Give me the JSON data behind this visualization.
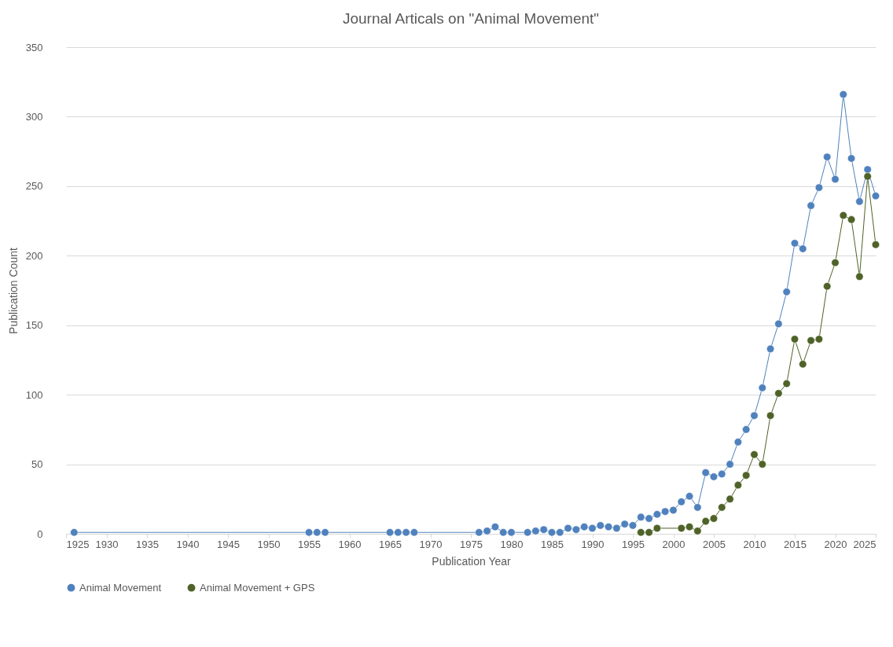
{
  "chart_data": {
    "type": "line",
    "title": "Journal Articals on \"Animal Movement\"",
    "xlabel": "Publication Year",
    "ylabel": "Publication Count",
    "xlim": [
      1925,
      2025
    ],
    "xticks": [
      1925,
      1930,
      1935,
      1940,
      1945,
      1950,
      1955,
      1960,
      1965,
      1970,
      1975,
      1980,
      1985,
      1990,
      1995,
      2000,
      2005,
      2010,
      2015,
      2020,
      2025
    ],
    "ylim": [
      0,
      350
    ],
    "yticks": [
      0,
      50,
      100,
      150,
      200,
      250,
      300,
      350
    ],
    "grid": "y",
    "legend": "bottom",
    "marker": "circle",
    "line_style": "solid",
    "series": [
      {
        "name": "Animal Movement",
        "color": "#4f81bd",
        "x": [
          1926,
          1955,
          1956,
          1957,
          1965,
          1966,
          1967,
          1968,
          1976,
          1977,
          1978,
          1979,
          1980,
          1982,
          1983,
          1984,
          1985,
          1986,
          1987,
          1988,
          1989,
          1990,
          1991,
          1992,
          1993,
          1994,
          1995,
          1996,
          1997,
          1998,
          1999,
          2000,
          2001,
          2002,
          2003,
          2004,
          2005,
          2006,
          2007,
          2008,
          2009,
          2010,
          2011,
          2012,
          2013,
          2014,
          2015,
          2016,
          2017,
          2018,
          2019,
          2020,
          2021,
          2022,
          2023,
          2024,
          2025
        ],
        "values": [
          1,
          1,
          1,
          1,
          1,
          1,
          1,
          1,
          1,
          2,
          5,
          1,
          1,
          1,
          2,
          3,
          1,
          1,
          4,
          3,
          5,
          4,
          6,
          5,
          4,
          7,
          6,
          12,
          11,
          14,
          16,
          17,
          23,
          27,
          19,
          44,
          41,
          43,
          50,
          66,
          75,
          85,
          105,
          133,
          151,
          174,
          209,
          205,
          236,
          249,
          271,
          255,
          316,
          270,
          239,
          262,
          243
        ]
      },
      {
        "name": "Animal Movement + GPS",
        "color": "#4f6228",
        "x": [
          1996,
          1997,
          1998,
          2001,
          2002,
          2003,
          2004,
          2005,
          2006,
          2007,
          2008,
          2009,
          2010,
          2011,
          2012,
          2013,
          2014,
          2015,
          2016,
          2017,
          2018,
          2019,
          2020,
          2021,
          2022,
          2023,
          2024,
          2025
        ],
        "values": [
          1,
          1,
          4,
          4,
          5,
          2,
          9,
          11,
          19,
          25,
          35,
          42,
          57,
          50,
          85,
          101,
          108,
          140,
          122,
          139,
          140,
          178,
          195,
          229,
          226,
          185,
          257,
          208
        ]
      }
    ]
  }
}
